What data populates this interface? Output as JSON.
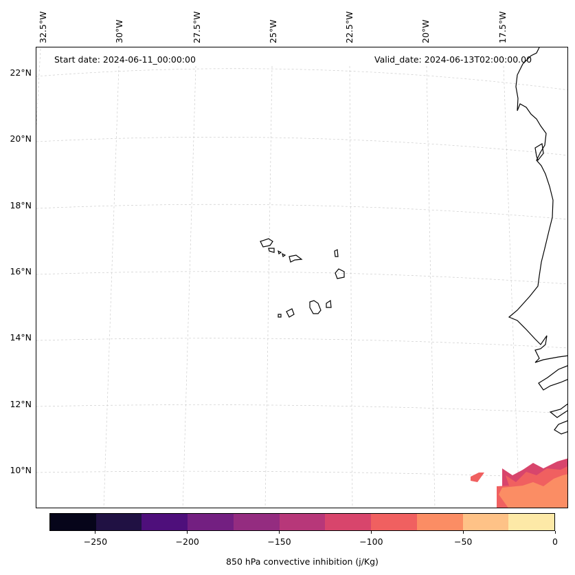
{
  "map": {
    "start_date": "Start date: 2024-06-11_00:00:00",
    "valid_date": "Valid_date: 2024-06-13T02:00:00.00",
    "gridlines": "dashed",
    "lon_labels": [
      "32.5°W",
      "30°W",
      "27.5°W",
      "25°W",
      "22.5°W",
      "20°W",
      "17.5°W"
    ],
    "lat_labels": [
      "22°N",
      "20°N",
      "18°N",
      "16°N",
      "14°N",
      "12°N",
      "10°N"
    ]
  },
  "colorbar": {
    "label": "850 hPa convective inhibition (j/Kg)",
    "ticks": [
      "−250",
      "−200",
      "−150",
      "−100",
      "−50",
      "0"
    ],
    "colors": [
      "#06051a",
      "#201143",
      "#4e0f7b",
      "#731f81",
      "#942c80",
      "#b73779",
      "#d8456c",
      "#f06060",
      "#fb8d64",
      "#fec287",
      "#fde9a7"
    ]
  }
}
